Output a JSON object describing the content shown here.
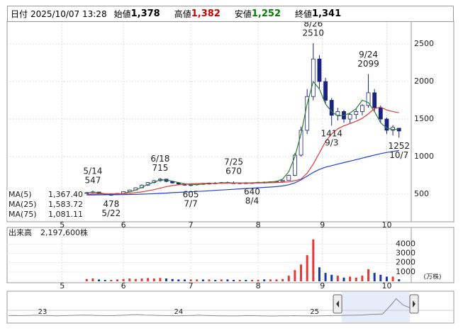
{
  "header": {
    "date_label": "日付",
    "datetime": "2025/10/07 13:28",
    "items": [
      {
        "label": "始値",
        "value": "1,378",
        "color": "#000000"
      },
      {
        "label": "高値",
        "value": "1,382",
        "color": "#d00000"
      },
      {
        "label": "安値",
        "value": "1,252",
        "color": "#008000"
      },
      {
        "label": "終値",
        "value": "1,341",
        "color": "#000000"
      }
    ]
  },
  "chart_data": [
    {
      "type": "candlestick",
      "x": [
        8,
        10,
        12,
        14,
        16,
        18,
        20,
        22,
        24,
        26,
        28,
        30,
        32,
        34,
        36,
        38,
        40,
        42,
        44,
        46,
        48,
        50,
        52,
        54,
        56,
        58,
        60,
        62,
        64,
        66,
        68,
        70,
        72,
        74,
        76,
        78,
        80,
        82,
        84,
        86,
        88,
        90,
        92,
        94,
        96,
        98,
        100,
        102,
        104,
        106,
        108,
        110
      ],
      "open": [
        515,
        520,
        528,
        505,
        490,
        495,
        510,
        535,
        555,
        585,
        620,
        655,
        680,
        700,
        670,
        650,
        635,
        620,
        625,
        640,
        635,
        648,
        645,
        655,
        650,
        645,
        650,
        648,
        652,
        658,
        655,
        665,
        670,
        685,
        750,
        1020,
        1350,
        1800,
        2300,
        2000,
        1750,
        1550,
        1600,
        1500,
        1560,
        1600,
        1680,
        1850,
        1650,
        1500,
        1350,
        1378
      ],
      "high": [
        530,
        547,
        532,
        510,
        500,
        515,
        540,
        560,
        590,
        630,
        660,
        690,
        715,
        705,
        680,
        660,
        645,
        630,
        645,
        650,
        655,
        660,
        662,
        668,
        670,
        655,
        660,
        655,
        665,
        668,
        670,
        680,
        690,
        760,
        1050,
        1400,
        1900,
        2510,
        2350,
        2050,
        1780,
        1650,
        1620,
        1580,
        1640,
        1700,
        2099,
        1900,
        1680,
        1520,
        1420,
        1382
      ],
      "low": [
        505,
        512,
        500,
        485,
        478,
        490,
        505,
        525,
        550,
        580,
        610,
        642,
        665,
        660,
        642,
        620,
        612,
        605,
        615,
        625,
        628,
        635,
        638,
        645,
        645,
        635,
        642,
        640,
        645,
        648,
        650,
        655,
        660,
        680,
        740,
        1000,
        1300,
        1750,
        1900,
        1700,
        1414,
        1480,
        1450,
        1440,
        1500,
        1550,
        1650,
        1600,
        1450,
        1300,
        1280,
        1252
      ],
      "close": [
        520,
        530,
        505,
        490,
        495,
        510,
        535,
        555,
        585,
        620,
        655,
        680,
        700,
        670,
        650,
        635,
        620,
        625,
        640,
        635,
        648,
        645,
        655,
        650,
        645,
        650,
        648,
        652,
        658,
        655,
        665,
        670,
        685,
        750,
        1020,
        1350,
        1800,
        2300,
        2000,
        1750,
        1550,
        1600,
        1500,
        1560,
        1600,
        1680,
        1850,
        1650,
        1500,
        1350,
        1390,
        1341
      ],
      "up_color": "#ffffff",
      "down_color": "#1a237e",
      "edge_color": "#1a237e",
      "xlim": [
        -18,
        114
      ],
      "xticks": [
        {
          "value": 0,
          "label": "5"
        },
        {
          "value": 20,
          "label": "6"
        },
        {
          "value": 42,
          "label": "7"
        },
        {
          "value": 64,
          "label": "8"
        },
        {
          "value": 85,
          "label": "9"
        },
        {
          "value": 106,
          "label": "10"
        }
      ],
      "ylim": [
        142,
        2802
      ],
      "yticks": [
        500,
        1000,
        1500,
        2000,
        2500
      ],
      "grid": true,
      "series": [
        {
          "name": "MA(5)",
          "color": "#2e7d32",
          "legend_value": "1,367.40",
          "values": [
            520,
            525,
            518,
            505,
            495,
            500,
            512,
            530,
            555,
            590,
            630,
            660,
            690,
            690,
            672,
            655,
            638,
            625,
            628,
            635,
            640,
            645,
            650,
            652,
            650,
            648,
            649,
            651,
            655,
            658,
            662,
            670,
            700,
            800,
            1000,
            1300,
            1700,
            2000,
            1900,
            1700,
            1600,
            1540,
            1550,
            1580,
            1640,
            1750,
            1720,
            1600,
            1450,
            1380,
            1360,
            1367.4
          ]
        },
        {
          "name": "MA(25)",
          "color": "#e53935",
          "legend_value": "1,583.72",
          "values": [
            500,
            502,
            504,
            505,
            505,
            505,
            507,
            512,
            520,
            530,
            545,
            560,
            580,
            600,
            615,
            625,
            632,
            637,
            640,
            643,
            645,
            645,
            646,
            647,
            648,
            648,
            648,
            649,
            650,
            651,
            652,
            655,
            660,
            665,
            680,
            700,
            780,
            900,
            1050,
            1200,
            1300,
            1370,
            1410,
            1440,
            1470,
            1510,
            1570,
            1640,
            1660,
            1620,
            1600,
            1583.72
          ]
        },
        {
          "name": "MA(75)",
          "color": "#1e3fd8",
          "legend_value": "1,081.11",
          "values": [
            490,
            490,
            491,
            492,
            492,
            493,
            494,
            496,
            498,
            500,
            503,
            507,
            511,
            515,
            520,
            524,
            528,
            532,
            536,
            540,
            545,
            550,
            555,
            560,
            565,
            570,
            575,
            580,
            585,
            590,
            595,
            600,
            610,
            625,
            650,
            690,
            740,
            790,
            830,
            860,
            880,
            900,
            920,
            940,
            960,
            980,
            1000,
            1020,
            1040,
            1055,
            1068,
            1081.11
          ]
        }
      ],
      "annotations": [
        {
          "date": "5/14",
          "value": 547,
          "position": "above"
        },
        {
          "date": "5/22",
          "value": 478,
          "position": "below"
        },
        {
          "date": "6/18",
          "value": 715,
          "position": "above"
        },
        {
          "date": "7/7",
          "value": 605,
          "position": "below"
        },
        {
          "date": "7/25",
          "value": 670,
          "position": "above"
        },
        {
          "date": "8/4",
          "value": 640,
          "position": "below"
        },
        {
          "date": "8/26",
          "value": 2510,
          "position": "above"
        },
        {
          "date": "9/3",
          "value": 1414,
          "position": "below"
        },
        {
          "date": "9/24",
          "value": 2099,
          "position": "above"
        },
        {
          "date": "10/7",
          "value": 1252,
          "position": "below"
        }
      ]
    },
    {
      "type": "bar",
      "title": "出来高",
      "total_label": "2,197,600株",
      "unit_label": "(万株)",
      "values": [
        250,
        300,
        200,
        150,
        150,
        200,
        250,
        300,
        250,
        300,
        350,
        300,
        350,
        300,
        250,
        200,
        200,
        200,
        200,
        200,
        200,
        150,
        200,
        200,
        150,
        150,
        150,
        150,
        150,
        200,
        200,
        200,
        250,
        600,
        1200,
        1800,
        2800,
        4500,
        1500,
        900,
        700,
        600,
        400,
        500,
        400,
        600,
        1300,
        900,
        700,
        500,
        500,
        219.76
      ],
      "up_color": "#e53935",
      "down_color": "#1a3a9e",
      "ylim": [
        0,
        5700
      ],
      "yticks": [
        1000,
        2000,
        3000,
        4000
      ],
      "grid": true
    },
    {
      "type": "line",
      "color": "#888888",
      "window_color": "#b8c8f0",
      "values": [
        520,
        540,
        510,
        530,
        560,
        540,
        520,
        500,
        510,
        530,
        550,
        580,
        560,
        540,
        520,
        510,
        530,
        560,
        600,
        620,
        580,
        560,
        540,
        520,
        510,
        500,
        520,
        540,
        560,
        530,
        510,
        500,
        490,
        480,
        500,
        520,
        510,
        490,
        480,
        470,
        490,
        500,
        510,
        500,
        490,
        480,
        500,
        510,
        520,
        530,
        550,
        560,
        580,
        640,
        660,
        700,
        1500,
        2400,
        1700,
        1400
      ],
      "xlim": [
        0,
        59
      ],
      "xticks": [
        {
          "value": 5,
          "label": "23"
        },
        {
          "value": 25,
          "label": "24"
        },
        {
          "value": 45,
          "label": "25"
        }
      ],
      "ylim": [
        0,
        3000
      ],
      "window": [
        49,
        59
      ]
    }
  ]
}
